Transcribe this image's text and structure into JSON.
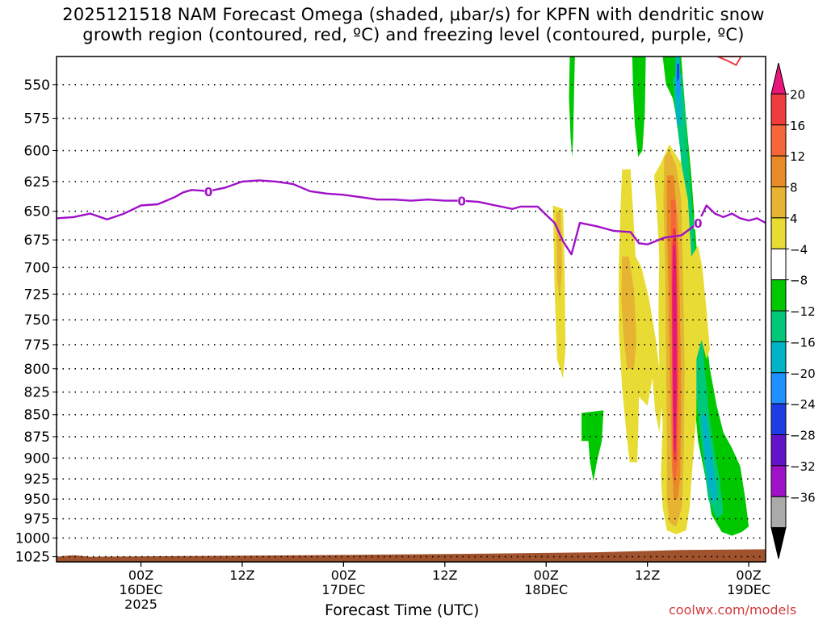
{
  "title": {
    "line1": "2025121518 NAM Forecast Omega (shaded, μbar/s) for KPFN with dendritic snow",
    "line2": "growth region (contoured, red, ºC) and freezing level (contoured, purple, ºC)"
  },
  "credit": "coolwx.com/models",
  "chart_data": {
    "type": "heatmap",
    "xlabel": "Forecast Time (UTC)",
    "ylabel": "",
    "y_axis": {
      "ticks": [
        550,
        575,
        600,
        625,
        650,
        675,
        700,
        725,
        750,
        775,
        800,
        825,
        850,
        875,
        900,
        925,
        950,
        975,
        1000,
        1025
      ],
      "range": [
        530,
        1032
      ],
      "inverted": true,
      "unit": "hPa",
      "scale": "log"
    },
    "x_axis": {
      "range_hours": [
        -4,
        80
      ],
      "ticks": [
        {
          "hour": 6,
          "label": "00Z",
          "sub1": "16DEC",
          "sub2": "2025"
        },
        {
          "hour": 18,
          "label": "12Z",
          "sub1": "",
          "sub2": ""
        },
        {
          "hour": 30,
          "label": "00Z",
          "sub1": "17DEC",
          "sub2": ""
        },
        {
          "hour": 42,
          "label": "12Z",
          "sub1": "",
          "sub2": ""
        },
        {
          "hour": 54,
          "label": "00Z",
          "sub1": "18DEC",
          "sub2": ""
        },
        {
          "hour": 66,
          "label": "12Z",
          "sub1": "",
          "sub2": ""
        },
        {
          "hour": 78,
          "label": "00Z",
          "sub1": "19DEC",
          "sub2": ""
        }
      ]
    },
    "grid": true,
    "colorbar": {
      "levels": [
        "20",
        "16",
        "12",
        "8",
        "4",
        "−4",
        "−8",
        "−12",
        "−16",
        "−20",
        "−24",
        "−28",
        "−32",
        "−36"
      ],
      "colors": [
        "#e8157a",
        "#f03c3c",
        "#f5663a",
        "#e88a28",
        "#e6b432",
        "#e8dc34",
        "#ffffff",
        "#00c800",
        "#00c87a",
        "#00b4c8",
        "#1e90ff",
        "#1e3ce6",
        "#6414c8",
        "#a012c8",
        "#aaaaaa",
        "#000000"
      ]
    },
    "freezing_level": {
      "label": "0",
      "color": "#a010c8",
      "points": [
        [
          -4,
          656
        ],
        [
          -2,
          655
        ],
        [
          0,
          652
        ],
        [
          2,
          657
        ],
        [
          4,
          652
        ],
        [
          6,
          645
        ],
        [
          8,
          644
        ],
        [
          9,
          641
        ],
        [
          10,
          638
        ],
        [
          11,
          634
        ],
        [
          12,
          632
        ],
        [
          14,
          633
        ],
        [
          16,
          630
        ],
        [
          18,
          625
        ],
        [
          20,
          624
        ],
        [
          22,
          625
        ],
        [
          24,
          627
        ],
        [
          26,
          633
        ],
        [
          28,
          635
        ],
        [
          30,
          636
        ],
        [
          32,
          638
        ],
        [
          34,
          640
        ],
        [
          36,
          640
        ],
        [
          38,
          641
        ],
        [
          40,
          640
        ],
        [
          42,
          641
        ],
        [
          44,
          641
        ],
        [
          46,
          642
        ],
        [
          48,
          645
        ],
        [
          50,
          648
        ],
        [
          51,
          646
        ],
        [
          53,
          646
        ],
        [
          54,
          653
        ],
        [
          55,
          660
        ],
        [
          56,
          676
        ],
        [
          57,
          688
        ],
        [
          58,
          660
        ],
        [
          60,
          663
        ],
        [
          62,
          667
        ],
        [
          64,
          668
        ],
        [
          65,
          678
        ],
        [
          66,
          679
        ],
        [
          67,
          676
        ],
        [
          68,
          673
        ],
        [
          70,
          671
        ],
        [
          72,
          660
        ],
        [
          73,
          645
        ],
        [
          74,
          652
        ],
        [
          75,
          655
        ],
        [
          76,
          652
        ],
        [
          77,
          656
        ],
        [
          78,
          658
        ],
        [
          79,
          656
        ],
        [
          80,
          660
        ]
      ],
      "labels_at_hours": [
        14,
        44,
        72
      ]
    },
    "dgz_contour_color": "#f03c3c",
    "terrain_color": "#a0522d"
  }
}
